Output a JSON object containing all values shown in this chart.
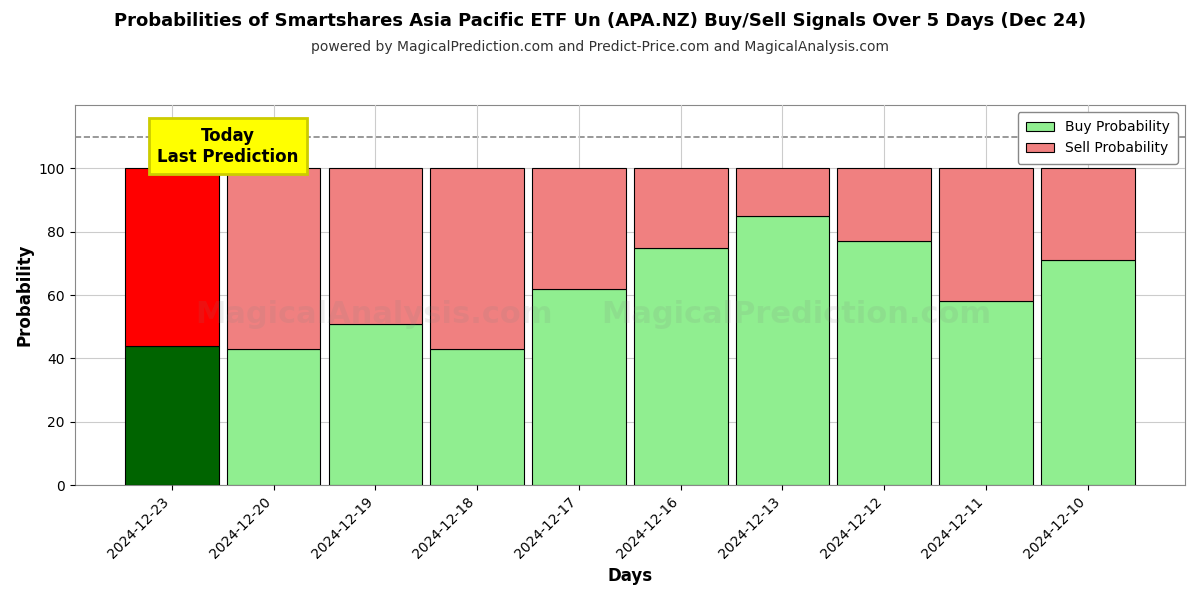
{
  "title": "Probabilities of Smartshares Asia Pacific ETF Un (APA.NZ) Buy/Sell Signals Over 5 Days (Dec 24)",
  "subtitle": "powered by MagicalPrediction.com and Predict-Price.com and MagicalAnalysis.com",
  "xlabel": "Days",
  "ylabel": "Probability",
  "categories": [
    "2024-12-23",
    "2024-12-20",
    "2024-12-19",
    "2024-12-18",
    "2024-12-17",
    "2024-12-16",
    "2024-12-13",
    "2024-12-12",
    "2024-12-11",
    "2024-12-10"
  ],
  "buy_values": [
    44,
    43,
    51,
    43,
    62,
    75,
    85,
    77,
    58,
    71
  ],
  "sell_values": [
    56,
    57,
    49,
    57,
    38,
    25,
    15,
    23,
    42,
    29
  ],
  "today_bar_index": 0,
  "buy_color_today": "#006400",
  "sell_color_today": "#ff0000",
  "buy_color_normal": "#90EE90",
  "sell_color_normal": "#f08080",
  "bar_edge_color": "#000000",
  "ylim": [
    0,
    120
  ],
  "yticks": [
    0,
    20,
    40,
    60,
    80,
    100
  ],
  "dashed_line_y": 110,
  "dashed_line_color": "#888888",
  "watermark_text1": "MagicalAnalysis.com",
  "watermark_text2": "MagicalPrediction.com",
  "watermark_alpha": 0.13,
  "today_label_text": "Today\nLast Prediction",
  "today_label_bg": "#ffff00",
  "legend_buy_label": "Buy Probability",
  "legend_sell_label": "Sell Probability",
  "grid_color": "#cccccc",
  "background_color": "#ffffff",
  "title_fontsize": 13,
  "subtitle_fontsize": 10,
  "axis_label_fontsize": 12,
  "tick_fontsize": 10
}
